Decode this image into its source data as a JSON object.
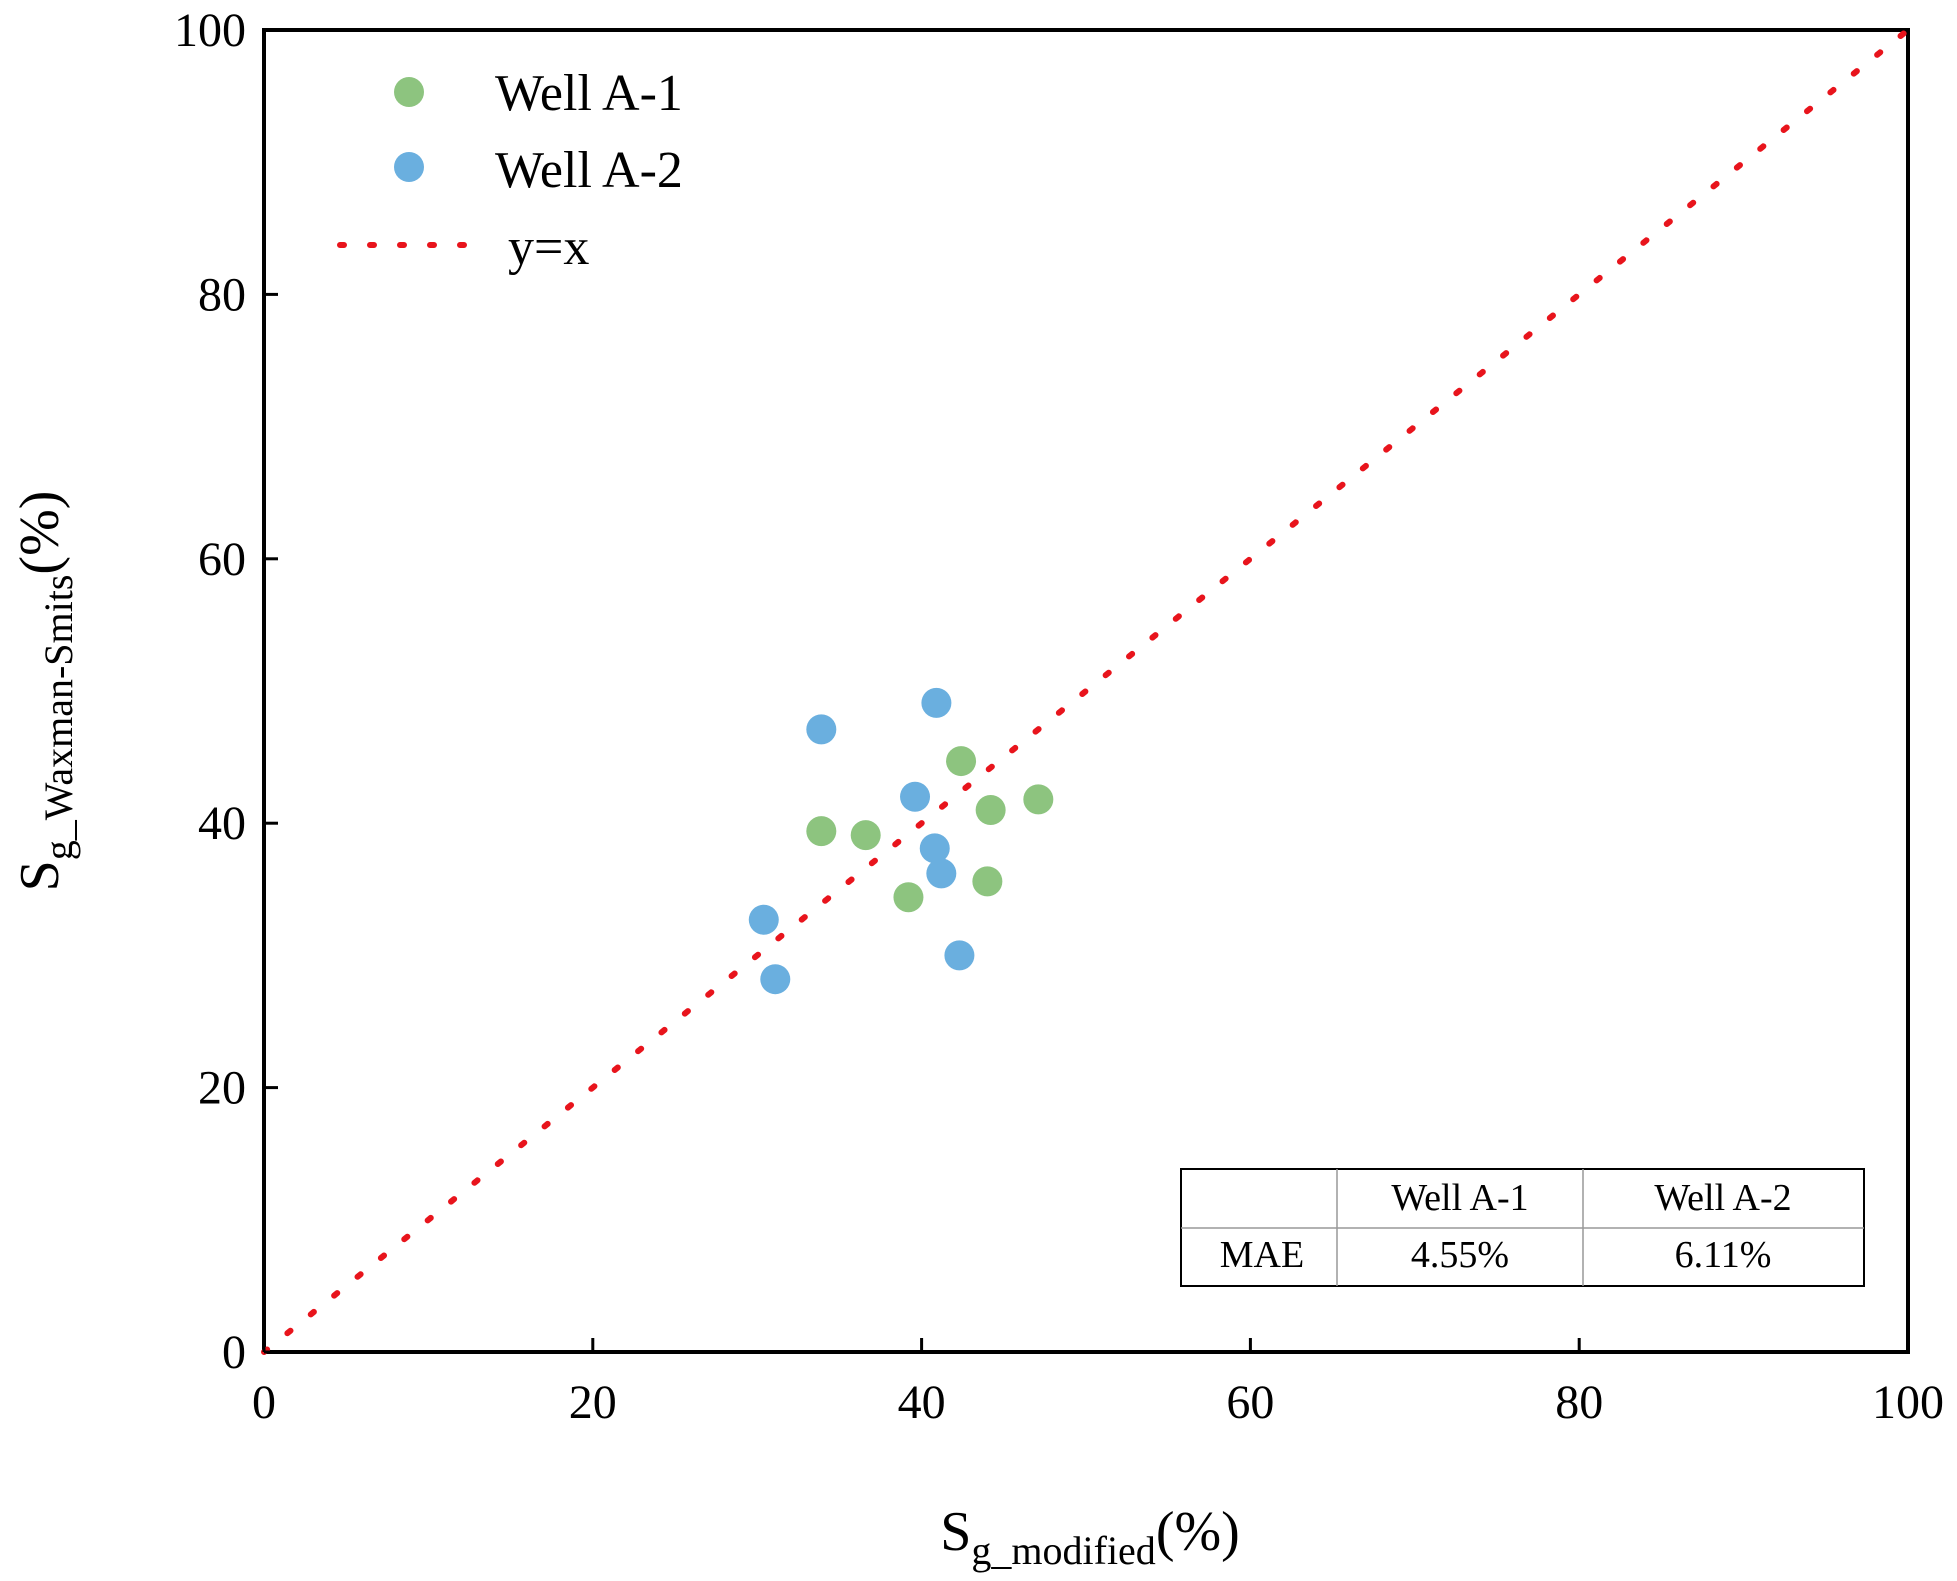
{
  "chart_data": {
    "type": "scatter",
    "xlim": [
      0,
      100
    ],
    "ylim": [
      0,
      100
    ],
    "x_ticks": [
      "0",
      "20",
      "40",
      "60",
      "80",
      "100"
    ],
    "y_ticks": [
      "0",
      "20",
      "40",
      "60",
      "80",
      "100"
    ],
    "xlabel": {
      "main": "S",
      "sub": "g_modified",
      "suffix": "(%)"
    },
    "ylabel": {
      "main": "S",
      "sub": "g_Waxman-Smits",
      "suffix": "(%)"
    },
    "series": [
      {
        "name": "Well A-1",
        "color": "#8dc47f",
        "points": [
          [
            33.9,
            39.4
          ],
          [
            36.6,
            39.1
          ],
          [
            39.2,
            34.4
          ],
          [
            42.4,
            44.7
          ],
          [
            44.2,
            41.0
          ],
          [
            44.0,
            35.6
          ],
          [
            47.1,
            41.8
          ]
        ]
      },
      {
        "name": "Well A-2",
        "color": "#6aafdf",
        "points": [
          [
            33.9,
            47.1
          ],
          [
            30.4,
            32.7
          ],
          [
            31.1,
            28.2
          ],
          [
            39.6,
            42.0
          ],
          [
            40.9,
            49.1
          ],
          [
            40.8,
            38.1
          ],
          [
            41.2,
            36.2
          ],
          [
            42.3,
            30.0
          ]
        ]
      }
    ],
    "reference_line": {
      "name": "y=x",
      "color": "#e8141c",
      "from": [
        0,
        0
      ],
      "to": [
        100,
        100
      ]
    },
    "legend": {
      "position": "top-left",
      "entries": [
        "Well A-1",
        "Well A-2",
        "y=x"
      ]
    },
    "table": {
      "header": [
        "",
        "Well A-1",
        "Well A-2"
      ],
      "rows": [
        [
          "MAE",
          "4.55%",
          "6.11%"
        ]
      ],
      "position": "bottom-right"
    }
  }
}
